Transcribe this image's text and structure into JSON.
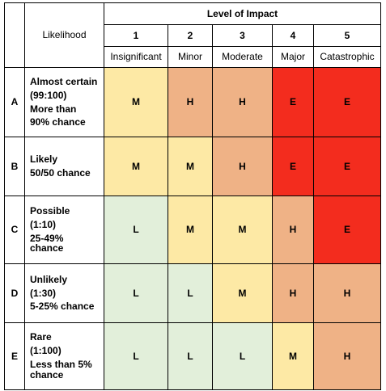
{
  "header": {
    "likelihood_label": "Likelihood",
    "impact_title": "Level of Impact",
    "impact_levels": [
      {
        "number": "1",
        "label": "Insignificant"
      },
      {
        "number": "2",
        "label": "Minor"
      },
      {
        "number": "3",
        "label": "Moderate"
      },
      {
        "number": "4",
        "label": "Major"
      },
      {
        "number": "5",
        "label": "Catastrophic"
      }
    ]
  },
  "rating_colors": {
    "L": "#e2efda",
    "M": "#fde9a5",
    "H": "#efb286",
    "E": "#f32c1e"
  },
  "rows": [
    {
      "letter": "A",
      "desc_lines": [
        "Almost certain",
        "(99:100)",
        "More than",
        "90% chance"
      ],
      "ratings": [
        "M",
        "H",
        "H",
        "E",
        "E"
      ]
    },
    {
      "letter": "B",
      "desc_lines": [
        "Likely",
        "50/50 chance"
      ],
      "ratings": [
        "M",
        "M",
        "H",
        "E",
        "E"
      ]
    },
    {
      "letter": "C",
      "desc_lines": [
        "Possible",
        "(1:10)",
        "25-49%",
        "chance"
      ],
      "ratings": [
        "L",
        "M",
        "M",
        "H",
        "E"
      ]
    },
    {
      "letter": "D",
      "desc_lines": [
        "Unlikely",
        "(1:30)",
        "5-25% chance"
      ],
      "ratings": [
        "L",
        "L",
        "M",
        "H",
        "H"
      ]
    },
    {
      "letter": "E",
      "desc_lines": [
        "Rare",
        "(1:100)",
        "Less than 5%",
        "chance"
      ],
      "ratings": [
        "L",
        "L",
        "L",
        "M",
        "H"
      ]
    }
  ]
}
